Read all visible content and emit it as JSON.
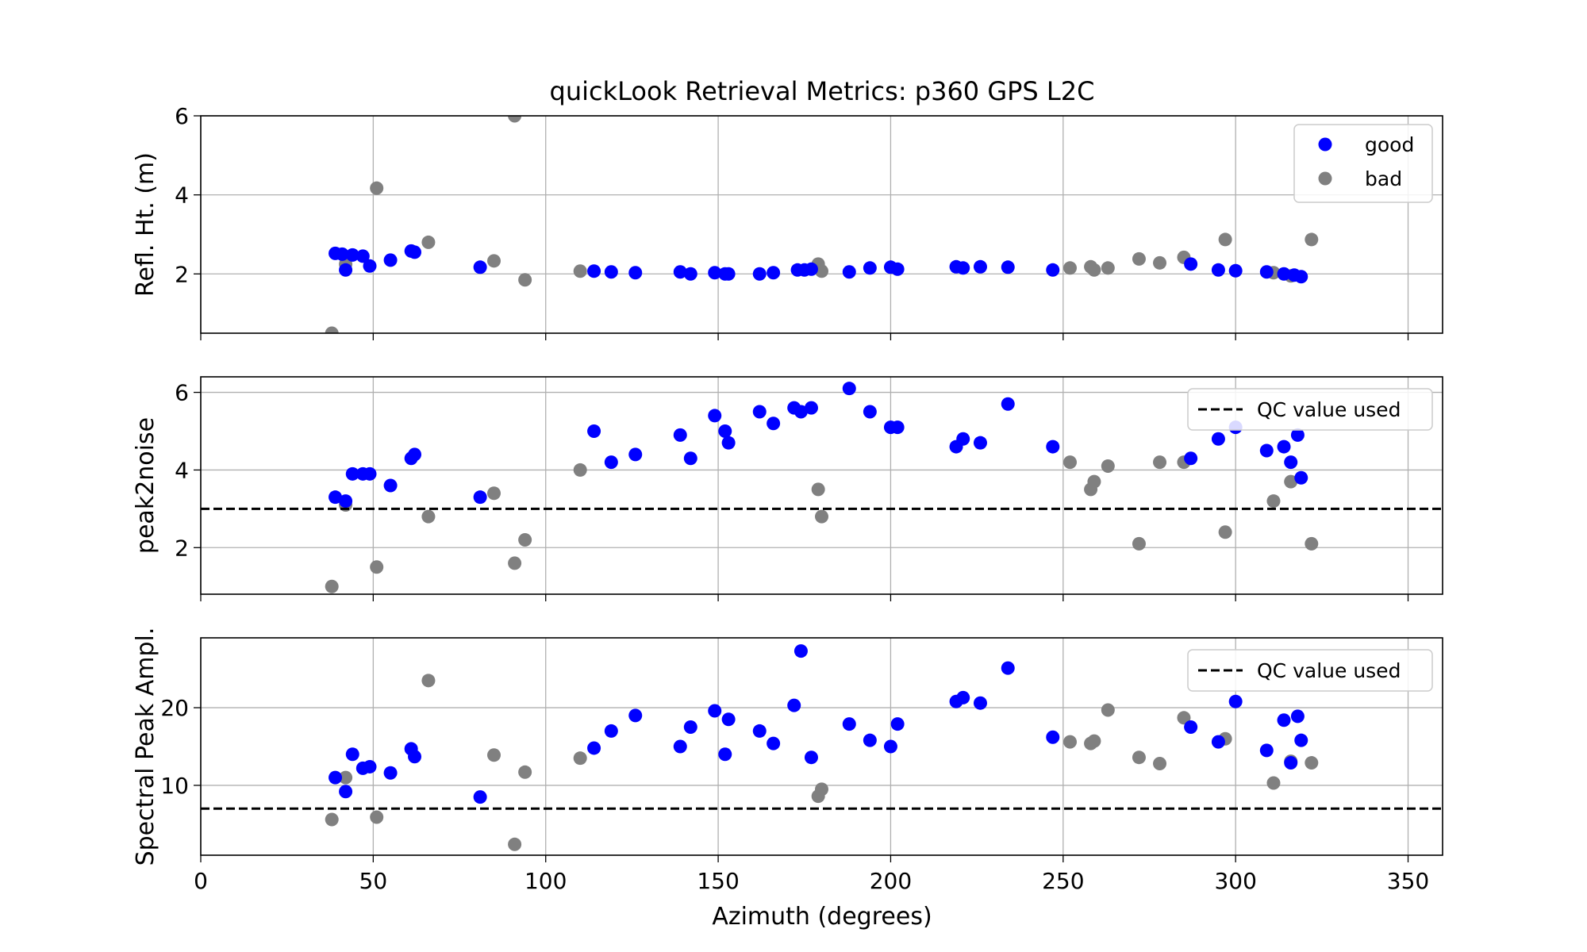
{
  "title": "quickLook Retrieval Metrics: p360 GPS L2C",
  "xlabel": "Azimuth (degrees)",
  "xlim": [
    0,
    360
  ],
  "xticks": [
    0,
    50,
    100,
    150,
    200,
    250,
    300,
    350
  ],
  "colors": {
    "good": "#0000ff",
    "bad": "#808080",
    "qc": "#000000",
    "grid": "#b0b0b0"
  },
  "chart_data": [
    {
      "type": "scatter",
      "ylabel": "Refl. Ht. (m)",
      "ylim": [
        0.5,
        6
      ],
      "yticks": [
        2,
        4,
        6
      ],
      "grid": true,
      "legend": {
        "position": "top-right",
        "entries": [
          "good",
          "bad"
        ]
      },
      "series": [
        {
          "name": "good",
          "points": [
            [
              39,
              2.52
            ],
            [
              41,
              2.5
            ],
            [
              42,
              2.1
            ],
            [
              44,
              2.48
            ],
            [
              47,
              2.45
            ],
            [
              49,
              2.2
            ],
            [
              55,
              2.35
            ],
            [
              61,
              2.58
            ],
            [
              62,
              2.55
            ],
            [
              81,
              2.17
            ],
            [
              114,
              2.07
            ],
            [
              119,
              2.05
            ],
            [
              126,
              2.03
            ],
            [
              139,
              2.05
            ],
            [
              142,
              2.0
            ],
            [
              149,
              2.03
            ],
            [
              152,
              2.0
            ],
            [
              153,
              2.0
            ],
            [
              162,
              2.0
            ],
            [
              166,
              2.03
            ],
            [
              173,
              2.1
            ],
            [
              175,
              2.1
            ],
            [
              177,
              2.12
            ],
            [
              188,
              2.05
            ],
            [
              194,
              2.15
            ],
            [
              200,
              2.17
            ],
            [
              202,
              2.12
            ],
            [
              219,
              2.18
            ],
            [
              221,
              2.15
            ],
            [
              226,
              2.18
            ],
            [
              234,
              2.17
            ],
            [
              247,
              2.1
            ],
            [
              287,
              2.25
            ],
            [
              295,
              2.1
            ],
            [
              300,
              2.08
            ],
            [
              309,
              2.05
            ],
            [
              314,
              2.0
            ],
            [
              317,
              1.97
            ],
            [
              319,
              1.93
            ]
          ]
        },
        {
          "name": "bad",
          "points": [
            [
              38,
              0.5
            ],
            [
              42,
              2.25
            ],
            [
              51,
              4.17
            ],
            [
              66,
              2.8
            ],
            [
              85,
              2.33
            ],
            [
              91,
              6.0
            ],
            [
              94,
              1.85
            ],
            [
              110,
              2.07
            ],
            [
              179,
              2.25
            ],
            [
              180,
              2.07
            ],
            [
              252,
              2.15
            ],
            [
              258,
              2.18
            ],
            [
              259,
              2.1
            ],
            [
              263,
              2.15
            ],
            [
              272,
              2.38
            ],
            [
              278,
              2.28
            ],
            [
              285,
              2.42
            ],
            [
              297,
              2.87
            ],
            [
              311,
              2.03
            ],
            [
              316,
              1.95
            ],
            [
              322,
              2.87
            ]
          ]
        }
      ]
    },
    {
      "type": "scatter",
      "ylabel": "peak2noise",
      "ylim": [
        0.8,
        6.4
      ],
      "yticks": [
        2,
        4,
        6
      ],
      "grid": true,
      "qc_value": 3.0,
      "legend": {
        "position": "top-right",
        "entries": [
          "QC value used"
        ]
      },
      "series": [
        {
          "name": "good",
          "points": [
            [
              39,
              3.3
            ],
            [
              42,
              3.2
            ],
            [
              44,
              3.9
            ],
            [
              47,
              3.9
            ],
            [
              49,
              3.9
            ],
            [
              55,
              3.6
            ],
            [
              61,
              4.3
            ],
            [
              62,
              4.4
            ],
            [
              81,
              3.3
            ],
            [
              114,
              5.0
            ],
            [
              119,
              4.2
            ],
            [
              126,
              4.4
            ],
            [
              139,
              4.9
            ],
            [
              142,
              4.3
            ],
            [
              149,
              5.4
            ],
            [
              152,
              5.0
            ],
            [
              153,
              4.7
            ],
            [
              162,
              5.5
            ],
            [
              166,
              5.2
            ],
            [
              172,
              5.6
            ],
            [
              174,
              5.5
            ],
            [
              177,
              5.6
            ],
            [
              188,
              6.1
            ],
            [
              194,
              5.5
            ],
            [
              200,
              5.1
            ],
            [
              202,
              5.1
            ],
            [
              219,
              4.6
            ],
            [
              221,
              4.8
            ],
            [
              226,
              4.7
            ],
            [
              234,
              5.7
            ],
            [
              247,
              4.6
            ],
            [
              287,
              4.3
            ],
            [
              295,
              4.8
            ],
            [
              300,
              5.1
            ],
            [
              309,
              4.5
            ],
            [
              314,
              4.6
            ],
            [
              316,
              4.2
            ],
            [
              318,
              4.9
            ],
            [
              319,
              3.8
            ]
          ]
        },
        {
          "name": "bad",
          "points": [
            [
              38,
              1.0
            ],
            [
              42,
              3.1
            ],
            [
              51,
              1.5
            ],
            [
              66,
              2.8
            ],
            [
              85,
              3.4
            ],
            [
              91,
              1.6
            ],
            [
              94,
              2.2
            ],
            [
              110,
              4.0
            ],
            [
              179,
              3.5
            ],
            [
              180,
              2.8
            ],
            [
              252,
              4.2
            ],
            [
              258,
              3.5
            ],
            [
              259,
              3.7
            ],
            [
              263,
              4.1
            ],
            [
              272,
              2.1
            ],
            [
              278,
              4.2
            ],
            [
              285,
              4.2
            ],
            [
              297,
              2.4
            ],
            [
              311,
              3.2
            ],
            [
              316,
              3.7
            ],
            [
              322,
              2.1
            ]
          ]
        }
      ]
    },
    {
      "type": "scatter",
      "ylabel": "Spectral Peak Ampl.",
      "ylim": [
        1,
        29
      ],
      "yticks": [
        10,
        20
      ],
      "grid": true,
      "qc_value": 7.0,
      "legend": {
        "position": "top-right",
        "entries": [
          "QC value used"
        ]
      },
      "series": [
        {
          "name": "good",
          "points": [
            [
              39,
              11.0
            ],
            [
              42,
              9.2
            ],
            [
              44,
              14.0
            ],
            [
              47,
              12.2
            ],
            [
              49,
              12.4
            ],
            [
              55,
              11.6
            ],
            [
              61,
              14.7
            ],
            [
              62,
              13.7
            ],
            [
              81,
              8.5
            ],
            [
              114,
              14.8
            ],
            [
              119,
              17.0
            ],
            [
              126,
              19.0
            ],
            [
              139,
              15.0
            ],
            [
              142,
              17.5
            ],
            [
              149,
              19.6
            ],
            [
              152,
              14.0
            ],
            [
              153,
              18.5
            ],
            [
              162,
              17.0
            ],
            [
              166,
              15.4
            ],
            [
              172,
              20.3
            ],
            [
              174,
              27.3
            ],
            [
              177,
              13.6
            ],
            [
              188,
              17.9
            ],
            [
              194,
              15.8
            ],
            [
              200,
              15.0
            ],
            [
              202,
              17.9
            ],
            [
              219,
              20.8
            ],
            [
              221,
              21.3
            ],
            [
              226,
              20.6
            ],
            [
              234,
              25.1
            ],
            [
              247,
              16.2
            ],
            [
              287,
              17.5
            ],
            [
              295,
              15.6
            ],
            [
              300,
              20.8
            ],
            [
              309,
              14.5
            ],
            [
              314,
              18.4
            ],
            [
              316,
              12.9
            ],
            [
              318,
              18.9
            ],
            [
              319,
              15.8
            ]
          ]
        },
        {
          "name": "bad",
          "points": [
            [
              38,
              5.6
            ],
            [
              42,
              11.0
            ],
            [
              51,
              5.9
            ],
            [
              66,
              23.5
            ],
            [
              85,
              13.9
            ],
            [
              91,
              2.4
            ],
            [
              94,
              11.7
            ],
            [
              110,
              13.5
            ],
            [
              179,
              8.6
            ],
            [
              180,
              9.5
            ],
            [
              252,
              15.6
            ],
            [
              258,
              15.4
            ],
            [
              259,
              15.7
            ],
            [
              263,
              19.7
            ],
            [
              272,
              13.6
            ],
            [
              278,
              12.8
            ],
            [
              285,
              18.7
            ],
            [
              297,
              16.0
            ],
            [
              311,
              10.3
            ],
            [
              316,
              13.1
            ],
            [
              322,
              12.9
            ]
          ]
        }
      ]
    }
  ]
}
